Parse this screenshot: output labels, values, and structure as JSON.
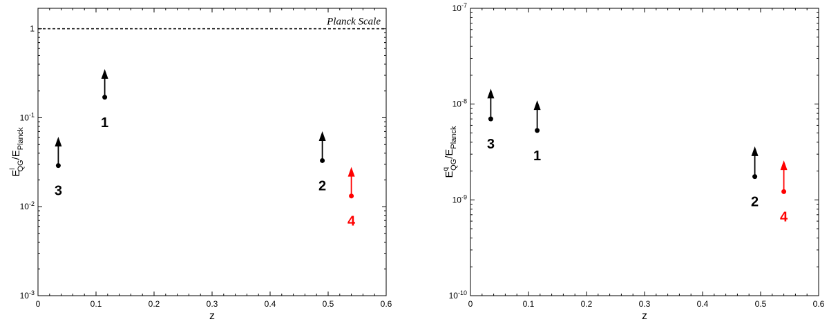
{
  "chart_data": [
    {
      "type": "scatter",
      "xlabel": "z",
      "ylabel": {
        "main": "E",
        "sup": "l",
        "sub": "QG",
        "rest": "/E",
        "sub2": "Planck"
      },
      "xlim": [
        0,
        0.6
      ],
      "ylim": [
        0.001,
        1.7
      ],
      "yscale": "log",
      "xticks": [
        "0",
        "0.1",
        "0.2",
        "0.3",
        "0.4",
        "0.5",
        "0.6"
      ],
      "yticks": [
        {
          "value": 0.001,
          "base": "10",
          "exp": "-3",
          "plain": ""
        },
        {
          "value": 0.01,
          "base": "10",
          "exp": "-2",
          "plain": ""
        },
        {
          "value": 0.1,
          "base": "10",
          "exp": "-1",
          "plain": ""
        },
        {
          "value": 1,
          "base": "",
          "exp": "",
          "plain": "1"
        }
      ],
      "reference_line": {
        "value": 1,
        "label": "Planck Scale"
      },
      "points": [
        {
          "label": "1",
          "x": 0.115,
          "y": 0.17,
          "arrow_to": 0.34,
          "color": "#000000",
          "label_pos": "below"
        },
        {
          "label": "3",
          "x": 0.035,
          "y": 0.029,
          "arrow_to": 0.059,
          "color": "#000000",
          "label_pos": "below"
        },
        {
          "label": "2",
          "x": 0.49,
          "y": 0.033,
          "arrow_to": 0.068,
          "color": "#000000",
          "label_pos": "below"
        },
        {
          "label": "4",
          "x": 0.54,
          "y": 0.0132,
          "arrow_to": 0.027,
          "color": "#ff0000",
          "label_pos": "below"
        }
      ]
    },
    {
      "type": "scatter",
      "xlabel": "z",
      "ylabel": {
        "main": "E",
        "sup": "q",
        "sub": "QG",
        "rest": "/E",
        "sub2": "Planck"
      },
      "xlim": [
        0,
        0.6
      ],
      "ylim": [
        1e-10,
        1e-07
      ],
      "yscale": "log",
      "xticks": [
        "0",
        "0.1",
        "0.2",
        "0.3",
        "0.4",
        "0.5",
        "0.6"
      ],
      "yticks": [
        {
          "value": 1e-10,
          "base": "10",
          "exp": "-10",
          "plain": ""
        },
        {
          "value": 1e-09,
          "base": "10",
          "exp": "-9",
          "plain": ""
        },
        {
          "value": 1e-08,
          "base": "10",
          "exp": "-8",
          "plain": ""
        },
        {
          "value": 1e-07,
          "base": "10",
          "exp": "-7",
          "plain": ""
        }
      ],
      "points": [
        {
          "label": "3",
          "x": 0.035,
          "y": 7e-09,
          "arrow_to": 1.4e-08,
          "color": "#000000",
          "label_pos": "below"
        },
        {
          "label": "1",
          "x": 0.115,
          "y": 5.3e-09,
          "arrow_to": 1.06e-08,
          "color": "#000000",
          "label_pos": "below"
        },
        {
          "label": "2",
          "x": 0.49,
          "y": 1.75e-09,
          "arrow_to": 3.5e-09,
          "color": "#000000",
          "label_pos": "below"
        },
        {
          "label": "4",
          "x": 0.54,
          "y": 1.22e-09,
          "arrow_to": 2.5e-09,
          "color": "#ff0000",
          "label_pos": "below"
        }
      ]
    }
  ]
}
